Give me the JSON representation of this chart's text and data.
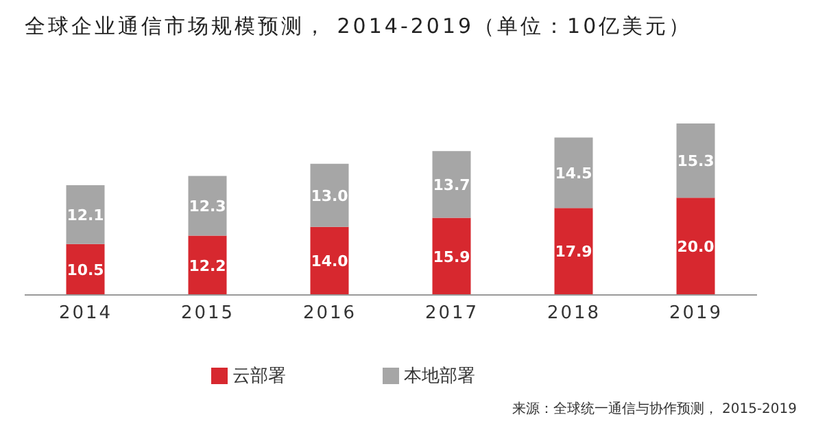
{
  "chart_data": {
    "type": "bar",
    "title": "全球企业通信市场规模预测， 2014-2019（单位：10亿美元）",
    "categories": [
      "2014",
      "2015",
      "2016",
      "2017",
      "2018",
      "2019"
    ],
    "stacked": true,
    "legend": "bottom",
    "grid": false,
    "series": [
      {
        "name": "云部署",
        "color": "#d7282f",
        "values": [
          10.5,
          12.2,
          14.0,
          15.9,
          17.9,
          20.0
        ],
        "value_labels": [
          "10.5",
          "12.2",
          "14.0",
          "15.9",
          "17.9",
          "20.0"
        ]
      },
      {
        "name": "本地部署",
        "color": "#a6a6a6",
        "values": [
          12.1,
          12.3,
          13.0,
          13.7,
          14.5,
          15.3
        ],
        "value_labels": [
          "12.1",
          "12.3",
          "13.0",
          "13.7",
          "14.5",
          "15.3"
        ]
      }
    ],
    "annotations": [
      "来源：全球统一通信与协作预测， 2015-2019"
    ]
  }
}
